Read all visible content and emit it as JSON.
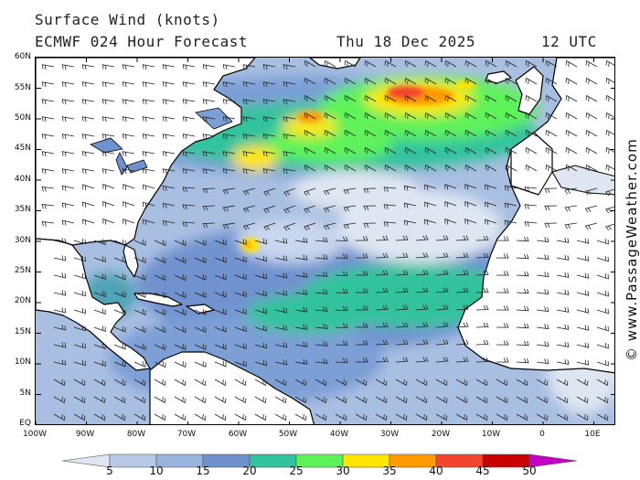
{
  "header": {
    "title": "Surface Wind (knots)",
    "model": "ECMWF 024 Hour Forecast",
    "date": "Thu 18 Dec 2025",
    "time": "12 UTC"
  },
  "credit": "© www.PassageWeather.com",
  "lat_labels": [
    "60N",
    "55N",
    "50N",
    "45N",
    "40N",
    "35N",
    "30N",
    "25N",
    "20N",
    "15N",
    "10N",
    "5N",
    "EQ"
  ],
  "lon_labels": [
    "100W",
    "90W",
    "80W",
    "70W",
    "60W",
    "50W",
    "40W",
    "30W",
    "20W",
    "10W",
    "0",
    "10E"
  ],
  "colorbar": {
    "labels": [
      "5",
      "10",
      "15",
      "20",
      "25",
      "30",
      "35",
      "40",
      "45",
      "50"
    ],
    "colors": [
      "#dfe6f2",
      "#b7c9e6",
      "#98b4dc",
      "#6f92cf",
      "#31c39d",
      "#5ef25a",
      "#ffe600",
      "#ff9a00",
      "#f2442f",
      "#c80000",
      "#c400c4"
    ]
  },
  "colors": {
    "land": "#ffffff",
    "ocean_low": "#c9d6ea",
    "ocean_mid": "#7c9fd6"
  }
}
